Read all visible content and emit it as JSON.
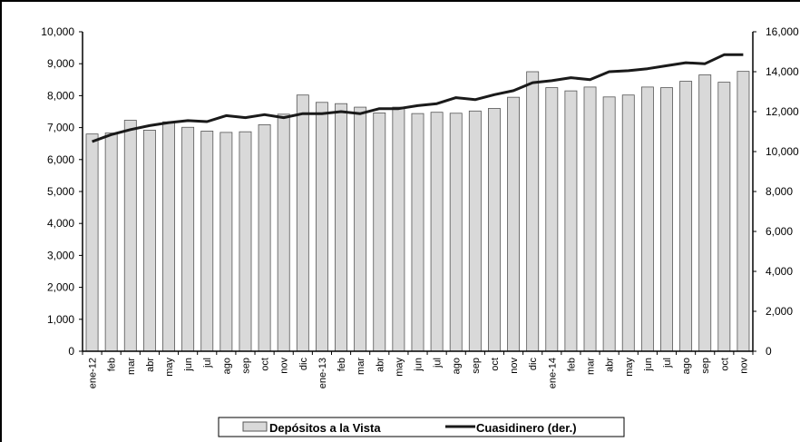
{
  "chart_data": {
    "type": "bar",
    "categories": [
      "ene-12",
      "feb",
      "mar",
      "abr",
      "may",
      "jun",
      "jul",
      "ago",
      "sep",
      "oct",
      "nov",
      "dic",
      "ene-13",
      "feb",
      "mar",
      "abr",
      "may",
      "jun",
      "jul",
      "ago",
      "sep",
      "oct",
      "nov",
      "dic",
      "ene-14",
      "feb",
      "mar",
      "abr",
      "may",
      "jun",
      "jul",
      "ago",
      "sep",
      "oct",
      "nov"
    ],
    "series": [
      {
        "name": "Depósitos a la Vista",
        "kind": "bar",
        "axis": "left",
        "color": "#d9d9d9",
        "values": [
          6800,
          6830,
          7230,
          6920,
          7180,
          7010,
          6890,
          6850,
          6870,
          7090,
          7420,
          8020,
          7790,
          7750,
          7640,
          7460,
          7640,
          7440,
          7480,
          7450,
          7520,
          7600,
          7950,
          8750,
          8250,
          8150,
          8270,
          7960,
          8020,
          8270,
          8250,
          8450,
          8650,
          8420,
          8760
        ]
      },
      {
        "name": "Cuasidinero (der.)",
        "kind": "line",
        "axis": "right",
        "color": "#1a1a1a",
        "values": [
          10500,
          10850,
          11100,
          11300,
          11450,
          11550,
          11500,
          11800,
          11700,
          11850,
          11700,
          11900,
          11900,
          12000,
          11900,
          12150,
          12150,
          12300,
          12400,
          12700,
          12600,
          12850,
          13050,
          13450,
          13550,
          13700,
          13600,
          14000,
          14050,
          14150,
          14300,
          14450,
          14400,
          14850,
          14850
        ]
      }
    ],
    "left_axis": {
      "ylim": [
        0,
        10000
      ],
      "ticks": [
        "0",
        "1,000",
        "2,000",
        "3,000",
        "4,000",
        "5,000",
        "6,000",
        "7,000",
        "8,000",
        "9,000",
        "10,000"
      ]
    },
    "right_axis": {
      "ylim": [
        0,
        16000
      ],
      "ticks": [
        "0",
        "2,000",
        "4,000",
        "6,000",
        "8,000",
        "10,000",
        "12,000",
        "14,000",
        "16,000"
      ]
    },
    "grid": false,
    "legend": {
      "placement": "bottom-center",
      "entries": [
        "Depósitos a la Vista",
        "Cuasidinero (der.)"
      ]
    },
    "colors": {
      "bar_fill": "#d9d9d9",
      "bar_stroke": "#555555",
      "line": "#1a1a1a",
      "axis": "#000000",
      "frame": "#000000"
    }
  }
}
